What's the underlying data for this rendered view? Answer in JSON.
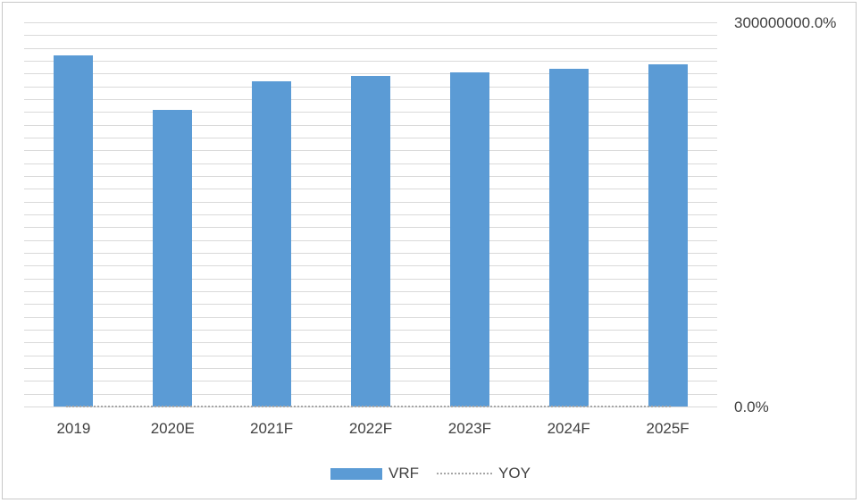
{
  "chart_data": {
    "type": "bar",
    "title": "",
    "xlabel": "",
    "ylabel": "",
    "categories": [
      "2019",
      "2020E",
      "2021F",
      "2022F",
      "2023F",
      "2024F",
      "2025F"
    ],
    "series": [
      {
        "name": "VRF",
        "type": "bar",
        "color": "#5b9bd5",
        "axis": "primary-hidden",
        "values": [
          274000000,
          232000000,
          254000000,
          258000000,
          261000000,
          264000000,
          267000000
        ],
        "values_note": "estimated in units of the visible secondary axis (%)"
      },
      {
        "name": "YOY",
        "type": "line",
        "line_style": "dotted",
        "color": "#a6a6a6",
        "axis": "secondary",
        "values": [
          0,
          0,
          0,
          0,
          0,
          0,
          0
        ]
      }
    ],
    "y2lim": [
      0,
      300000000
    ],
    "y2_unit": "%",
    "y2_ticks": {
      "top": "300000000.0%",
      "bottom": "0.0%"
    },
    "gridline_intervals": 30,
    "grid": true,
    "legend_position": "bottom"
  },
  "colors": {
    "bar_fill": "#5b9bd5",
    "gridline": "#d9d9d9",
    "yoy_line": "#a6a6a6",
    "axis_text": "#404040",
    "frame_border": "#c8c8c8",
    "background": "#ffffff"
  }
}
